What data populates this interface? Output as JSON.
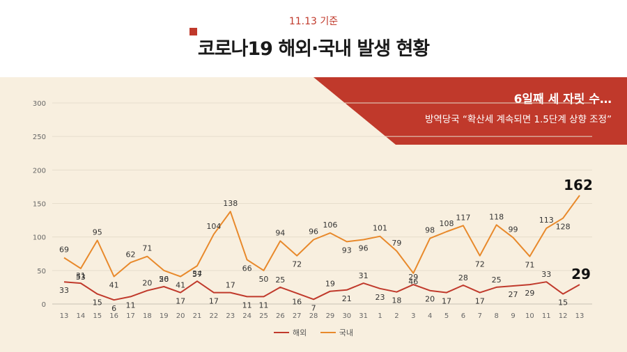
{
  "header": {
    "date_label": "11.13 기준",
    "title": "코로나19 해외·국내 발생 현황"
  },
  "banner": {
    "headline": "6일째 세 자릿 수…",
    "subline": "방역당국 “확산세 계속되면 1.5단계 상향 조정”",
    "color": "#c0392b"
  },
  "chart_data": {
    "type": "line",
    "categories": [
      "13",
      "14",
      "15",
      "16",
      "17",
      "18",
      "19",
      "20",
      "21",
      "22",
      "23",
      "24",
      "25",
      "26",
      "27",
      "28",
      "29",
      "30",
      "31",
      "1",
      "2",
      "3",
      "4",
      "5",
      "6",
      "7",
      "8",
      "9",
      "10",
      "11",
      "12",
      "13"
    ],
    "yticks": [
      "0",
      "50",
      "100",
      "150",
      "200",
      "250",
      "300"
    ],
    "ylim": [
      0,
      300
    ],
    "grid": true,
    "legend_position": "bottom",
    "series": [
      {
        "name": "해외",
        "color": "#c0392b",
        "values": [
          33,
          31,
          15,
          6,
          11,
          20,
          26,
          17,
          34,
          17,
          17,
          11,
          11,
          25,
          16,
          7,
          19,
          21,
          31,
          23,
          18,
          29,
          20,
          17,
          28,
          17,
          25,
          27,
          29,
          33,
          15,
          29
        ]
      },
      {
        "name": "국내",
        "color": "#e8892b",
        "values": [
          69,
          53,
          95,
          41,
          62,
          71,
          50,
          41,
          57,
          104,
          138,
          66,
          50,
          94,
          72,
          96,
          106,
          93,
          96,
          101,
          79,
          46,
          98,
          108,
          117,
          72,
          118,
          99,
          71,
          113,
          128,
          162
        ]
      }
    ]
  }
}
